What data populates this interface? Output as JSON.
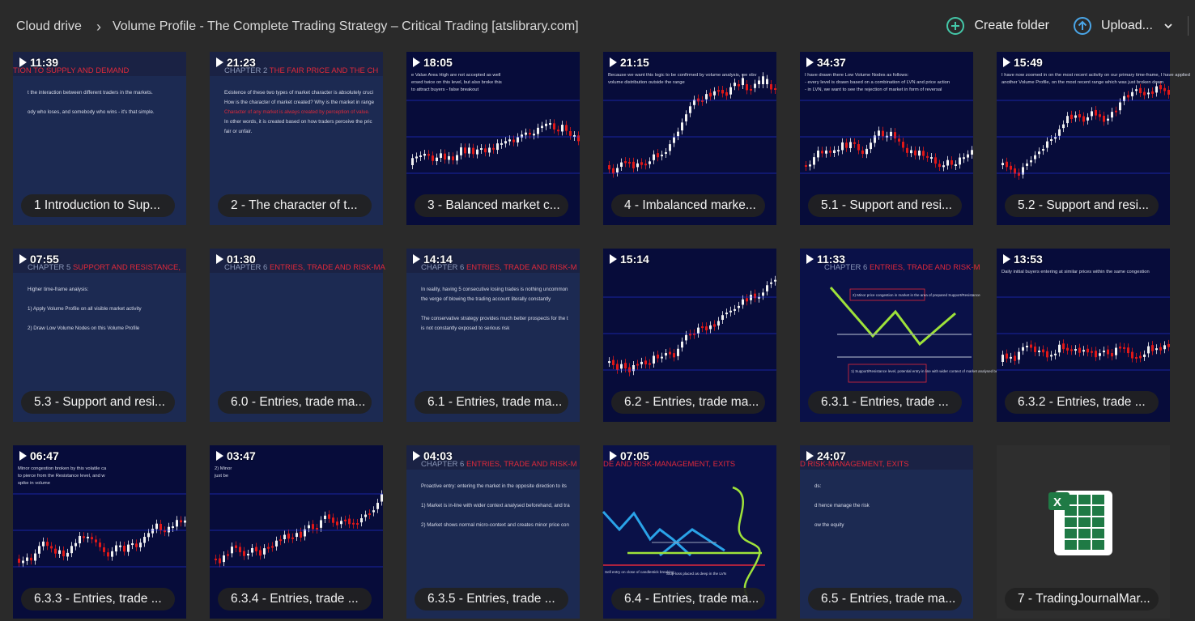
{
  "breadcrumb": {
    "root": "Cloud drive",
    "separator": "›",
    "current": "Volume Profile - The Complete Trading Strategy – Critical Trading [atslibrary.com]"
  },
  "toolbar": {
    "create_folder": "Create folder",
    "upload": "Upload..."
  },
  "files": [
    {
      "duration": "11:39",
      "name": "1 Introduction to Sup...",
      "style": "slide",
      "chapter": "",
      "heading": "TION TO SUPPLY AND DEMAND",
      "lines": [
        "t the interaction between different traders in the markets.",
        "",
        "ody who loses, and somebody who wins - it's that simple."
      ]
    },
    {
      "duration": "21:23",
      "name": "2 - The character of t...",
      "style": "slide",
      "chapter": "CHAPTER 2",
      "heading": "THE FAIR PRICE AND THE CH",
      "lines": [
        "Existence of these two types of market character is absolutely cruci",
        "How is the character of market created? Why is the market in range",
        "Character of any market is always created by perception of value.",
        "In other words, it is created based on how traders perceive the pric",
        "fair or unfair."
      ]
    },
    {
      "duration": "18:05",
      "name": "3 - Balanced market c...",
      "style": "chart",
      "chapter": "",
      "heading": "",
      "lines": [
        "e Value Area High are not accepted as well",
        "ersed twice on this level, but also broke this",
        "to attract buyers - false breakout"
      ]
    },
    {
      "duration": "21:15",
      "name": "4 - Imbalanced marke...",
      "style": "chart",
      "chapter": "",
      "heading": "",
      "lines": [
        "Because we want this logic to be confirmed by volume analysis, we obv",
        "volume distribution outside the range"
      ]
    },
    {
      "duration": "34:37",
      "name": "5.1 - Support and resi...",
      "style": "chart",
      "chapter": "",
      "heading": "",
      "lines": [
        "I have drawn there Low Volume Nodes as follows:",
        "- every level is drawn based on a combination of LVN and price action",
        "- in LVN, we want to see the rejection of market in form of reversal"
      ]
    },
    {
      "duration": "15:49",
      "name": "5.2 - Support and resi...",
      "style": "chart",
      "chapter": "",
      "heading": "",
      "lines": [
        "I have now zoomed in on the most recent activity on our primary time-frame, I have applied",
        "another Volume Profile, on the most recent range which was just broken down"
      ]
    },
    {
      "duration": "07:55",
      "name": "5.3 - Support and resi...",
      "style": "slide",
      "chapter": "CHAPTER 5",
      "heading": "SUPPORT AND RESISTANCE,",
      "lines": [
        "Higher time-frame analysis:",
        "",
        "1) Apply Volume Profile on all visible market activity",
        "",
        "2) Draw Low Volume Nodes on this Volume Profile"
      ]
    },
    {
      "duration": "01:30",
      "name": "6.0 - Entries, trade ma...",
      "style": "slide",
      "chapter": "CHAPTER 6",
      "heading": "ENTRIES, TRADE AND RISK-MA",
      "lines": []
    },
    {
      "duration": "14:14",
      "name": "6.1 - Entries, trade ma...",
      "style": "slide",
      "chapter": "CHAPTER 6",
      "heading": "ENTRIES, TRADE AND RISK-M",
      "lines": [
        "In reality, having 5 consecutive losing trades is nothing uncommon",
        "the verge of blowing the trading account literally constantly",
        "",
        "The conservative strategy provides much better prospects for the t",
        "is not constantly exposed to serious risk"
      ]
    },
    {
      "duration": "15:14",
      "name": "6.2 - Entries, trade ma...",
      "style": "chart",
      "chapter": "",
      "heading": "",
      "lines": []
    },
    {
      "duration": "11:33",
      "name": "6.3.1 - Entries, trade ...",
      "style": "diagram",
      "chapter": "CHAPTER 6",
      "heading": "ENTRIES, TRADE AND RISK-M",
      "lines": [
        "2) Minor price congestion in market in the area of prepared Support/Resistance",
        "1) Support/Resistance level, potential entry in line with wider context of market analysed beforehand"
      ]
    },
    {
      "duration": "13:53",
      "name": "6.3.2 - Entries, trade ...",
      "style": "chart",
      "chapter": "",
      "heading": "",
      "lines": [
        "Daily initial buyers entering at similar prices within the same congestion"
      ]
    },
    {
      "duration": "06:47",
      "name": "6.3.3 - Entries, trade ...",
      "style": "chart",
      "chapter": "",
      "heading": "",
      "lines": [
        "Minor congestion broken by this volatile ca",
        "to pierce from the Resistance level, and w",
        "spike in volume"
      ]
    },
    {
      "duration": "03:47",
      "name": "6.3.4 - Entries, trade ...",
      "style": "chart",
      "chapter": "",
      "heading": "",
      "lines": [
        "2) Minor",
        "just be"
      ]
    },
    {
      "duration": "04:03",
      "name": "6.3.5 - Entries, trade ...",
      "style": "slide",
      "chapter": "CHAPTER 6",
      "heading": "ENTRIES, TRADE AND RISK-M",
      "lines": [
        "Proactive entry: entering the market in the opposite direction to its",
        "",
        "1) Market is in-line with wider context analysed beforehand, and tra",
        "",
        "2) Market shows normal micro-context and creates minor price con"
      ]
    },
    {
      "duration": "07:05",
      "name": "6.4 - Entries, trade ma...",
      "style": "diagram",
      "chapter": "",
      "heading": "DE AND RISK-MANAGEMENT, EXITS",
      "lines": [
        "Stop-loss placed as deep in the LVN",
        "Sell entry on close of candlestick breaking"
      ]
    },
    {
      "duration": "24:07",
      "name": "6.5 - Entries, trade ma...",
      "style": "slide",
      "chapter": "",
      "heading": "D RISK-MANAGEMENT, EXITS",
      "lines": [
        "ds:",
        "",
        "d hence manage the risk",
        "",
        "ow the equity"
      ]
    },
    {
      "duration": "",
      "name": "7 - TradingJournalMar...",
      "style": "excel",
      "chapter": "",
      "heading": "",
      "lines": []
    }
  ],
  "colors": {
    "accent_green": "#44c7a8",
    "accent_blue": "#4aa6e8",
    "slide_red": "#e0293a",
    "candle_red": "#e01818",
    "excel_green": "#1f7a45"
  }
}
